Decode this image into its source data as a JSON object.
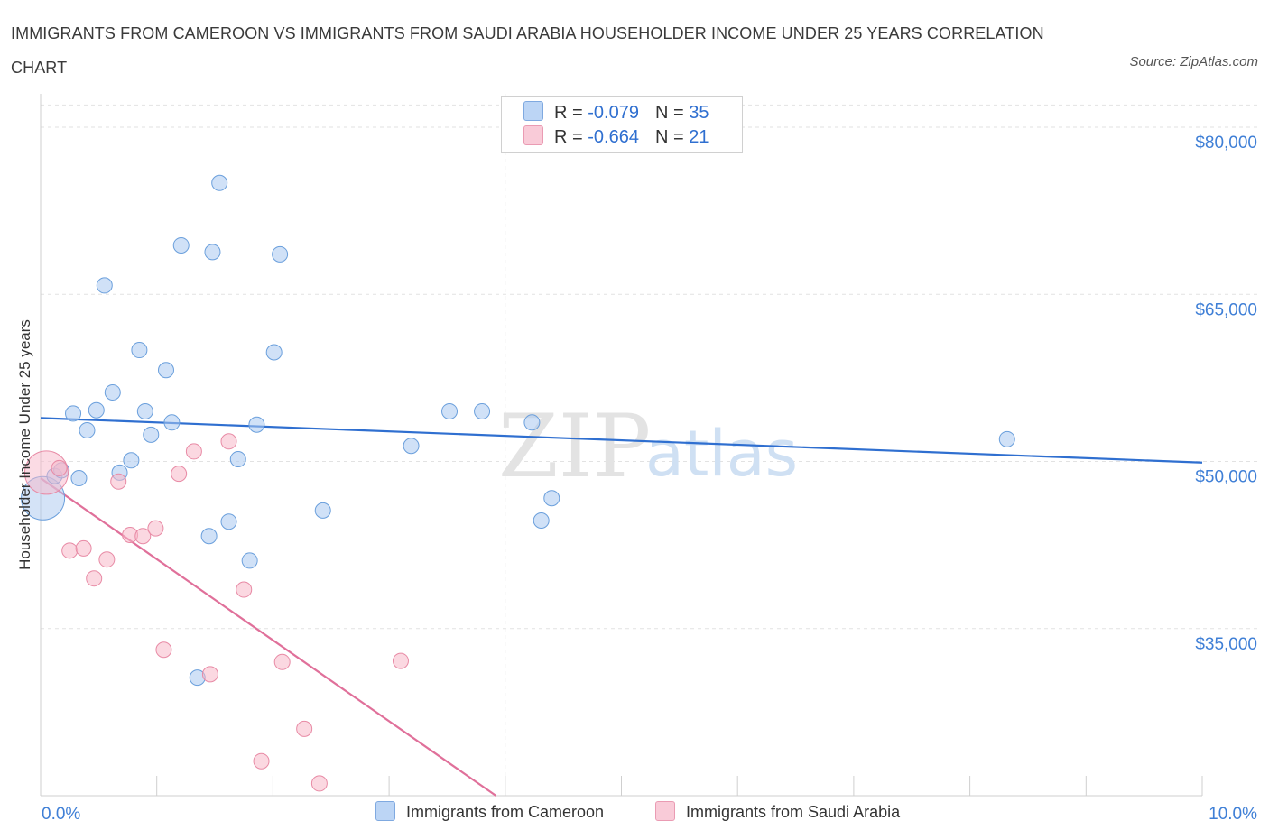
{
  "header": {
    "title": "IMMIGRANTS FROM CAMEROON VS IMMIGRANTS FROM SAUDI ARABIA HOUSEHOLDER INCOME UNDER 25 YEARS CORRELATION CHART",
    "source": "Source: ZipAtlas.com"
  },
  "watermark": {
    "zip": "ZIP",
    "atlas": "atlas"
  },
  "legend": {
    "rows": [
      {
        "r_label": "R = ",
        "r_value": "-0.079",
        "n_label": "N = ",
        "n_value": "35",
        "color": "#a9c8f0"
      },
      {
        "r_label": "R = ",
        "r_value": "-0.664",
        "n_label": "N = ",
        "n_value": "21",
        "color": "#f7b8c9"
      }
    ]
  },
  "bottom_legend": {
    "cameroon": "Immigrants from Cameroon",
    "saudi": "Immigrants from Saudi Arabia"
  },
  "chart_data": {
    "type": "scatter",
    "title": "IMMIGRANTS FROM CAMEROON VS IMMIGRANTS FROM SAUDI ARABIA HOUSEHOLDER INCOME UNDER 25 YEARS CORRELATION CHART",
    "xlabel": "",
    "ylabel": "Householder Income Under 25 years",
    "xlim": [
      0,
      10
    ],
    "ylim": [
      20000,
      83000
    ],
    "x_tick_labels": [
      "0.0%",
      "10.0%"
    ],
    "y_ticks": [
      35000,
      50000,
      65000,
      80000
    ],
    "y_tick_labels": [
      "$35,000",
      "$50,000",
      "$65,000",
      "$80,000"
    ],
    "grid": true,
    "legend_position": "top-center",
    "series": [
      {
        "name": "Immigrants from Cameroon",
        "color": "#a9c8f0",
        "stroke": "#6a9fdc",
        "trend": {
          "x0": 0,
          "y0": 53900,
          "x1": 10,
          "y1": 49900,
          "color": "#2f6fd0"
        },
        "points": [
          {
            "x": 0.02,
            "y": 46700,
            "big": true
          },
          {
            "x": 0.12,
            "y": 48700
          },
          {
            "x": 0.18,
            "y": 49200
          },
          {
            "x": 0.28,
            "y": 54300
          },
          {
            "x": 0.33,
            "y": 48500
          },
          {
            "x": 0.4,
            "y": 52800
          },
          {
            "x": 0.48,
            "y": 54600
          },
          {
            "x": 0.55,
            "y": 65800
          },
          {
            "x": 0.62,
            "y": 56200
          },
          {
            "x": 0.68,
            "y": 49000
          },
          {
            "x": 0.78,
            "y": 50100
          },
          {
            "x": 0.85,
            "y": 60000
          },
          {
            "x": 0.9,
            "y": 54500
          },
          {
            "x": 0.95,
            "y": 52400
          },
          {
            "x": 1.08,
            "y": 58200
          },
          {
            "x": 1.13,
            "y": 53500
          },
          {
            "x": 1.21,
            "y": 69400
          },
          {
            "x": 1.35,
            "y": 30600
          },
          {
            "x": 1.45,
            "y": 43300
          },
          {
            "x": 1.48,
            "y": 68800
          },
          {
            "x": 1.54,
            "y": 75000
          },
          {
            "x": 1.62,
            "y": 44600
          },
          {
            "x": 1.7,
            "y": 50200
          },
          {
            "x": 1.8,
            "y": 41100
          },
          {
            "x": 1.86,
            "y": 53300
          },
          {
            "x": 2.01,
            "y": 59800
          },
          {
            "x": 2.06,
            "y": 68600
          },
          {
            "x": 2.43,
            "y": 45600
          },
          {
            "x": 3.19,
            "y": 51400
          },
          {
            "x": 3.52,
            "y": 54500
          },
          {
            "x": 3.8,
            "y": 54500
          },
          {
            "x": 4.23,
            "y": 53500
          },
          {
            "x": 4.31,
            "y": 44700
          },
          {
            "x": 4.4,
            "y": 46700
          },
          {
            "x": 8.32,
            "y": 52000
          }
        ]
      },
      {
        "name": "Immigrants from Saudi Arabia",
        "color": "#f7b8c9",
        "stroke": "#e88aa5",
        "trend": {
          "x0": 0,
          "y0": 48500,
          "x1": 3.92,
          "y1": 20000,
          "color": "#e0709a"
        },
        "points": [
          {
            "x": 0.05,
            "y": 49000,
            "big": true
          },
          {
            "x": 0.16,
            "y": 49400
          },
          {
            "x": 0.25,
            "y": 42000
          },
          {
            "x": 0.37,
            "y": 42200
          },
          {
            "x": 0.46,
            "y": 39500
          },
          {
            "x": 0.57,
            "y": 41200
          },
          {
            "x": 0.67,
            "y": 48200
          },
          {
            "x": 0.77,
            "y": 43400
          },
          {
            "x": 0.88,
            "y": 43300
          },
          {
            "x": 0.99,
            "y": 44000
          },
          {
            "x": 1.06,
            "y": 33100
          },
          {
            "x": 1.19,
            "y": 48900
          },
          {
            "x": 1.32,
            "y": 50900
          },
          {
            "x": 1.46,
            "y": 30900
          },
          {
            "x": 1.62,
            "y": 51800
          },
          {
            "x": 1.75,
            "y": 38500
          },
          {
            "x": 1.9,
            "y": 23100
          },
          {
            "x": 2.08,
            "y": 32000
          },
          {
            "x": 2.27,
            "y": 26000
          },
          {
            "x": 2.4,
            "y": 21100
          },
          {
            "x": 3.1,
            "y": 32100
          }
        ]
      }
    ]
  }
}
